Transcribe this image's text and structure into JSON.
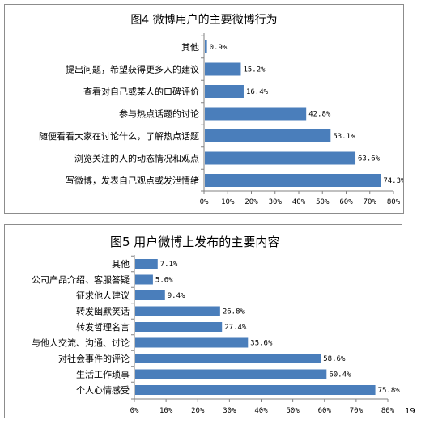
{
  "chart_data": [
    {
      "type": "bar",
      "orientation": "horizontal",
      "title": "图4 微博用户的主要微博行为",
      "categories": [
        "其他",
        "提出问题，希望获得更多人的建议",
        "查看对自己或某人的口碑评价",
        "参与热点话题的讨论",
        "随便看看大家在讨论什么，了解热点话题",
        "浏览关注的人的动态情况和观点",
        "写微博，发表自己观点或发泄情绪"
      ],
      "values": [
        0.9,
        15.2,
        16.4,
        42.8,
        53.1,
        63.6,
        74.3
      ],
      "value_labels": [
        "0.9%",
        "15.2%",
        "16.4%",
        "42.8%",
        "53.1%",
        "63.6%",
        "74.3%"
      ],
      "x_ticks": [
        "0%",
        "10%",
        "20%",
        "30%",
        "40%",
        "50%",
        "60%",
        "70%",
        "80%"
      ],
      "xlim": [
        0,
        80
      ],
      "bar_color": "#4a7ebb",
      "grid": false
    },
    {
      "type": "bar",
      "orientation": "horizontal",
      "title": "图5 用户微博上发布的主要内容",
      "categories": [
        "其他",
        "公司产品介绍、客服答疑",
        "征求他人建议",
        "转发幽默笑话",
        "转发哲理名言",
        "与他人交流、沟通、讨论",
        "对社会事件的评论",
        "生活工作琐事",
        "个人心情感受"
      ],
      "values": [
        7.1,
        5.6,
        9.4,
        26.8,
        27.4,
        35.6,
        58.6,
        60.4,
        75.8
      ],
      "value_labels": [
        "7.1%",
        "5.6%",
        "9.4%",
        "26.8%",
        "27.4%",
        "35.6%",
        "58.6%",
        "60.4%",
        "75.8%"
      ],
      "x_ticks": [
        "0%",
        "10%",
        "20%",
        "30%",
        "40%",
        "50%",
        "60%",
        "70%",
        "80%"
      ],
      "xlim": [
        0,
        80
      ],
      "bar_color": "#4a7ebb",
      "grid": false
    }
  ],
  "page_number": "19"
}
